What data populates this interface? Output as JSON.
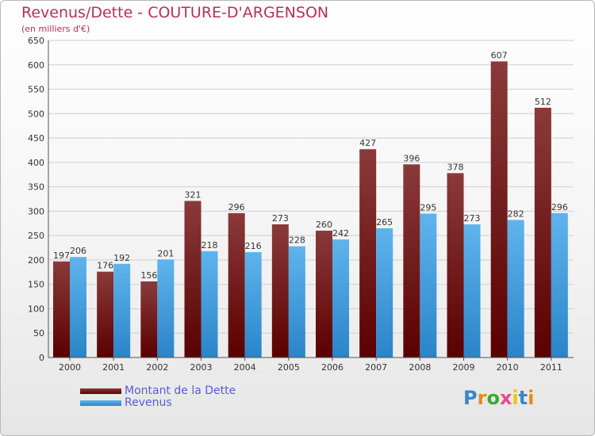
{
  "title": "Revenus/Dette - COUTURE-D'ARGENSON",
  "subtitle": "(en milliers d'€)",
  "logo": {
    "text": "Proxiti",
    "colors": [
      "#3a86c8",
      "#e8891c",
      "#3aa83a",
      "#e84a8a",
      "#f2c21c",
      "#3a86c8",
      "#e8891c"
    ]
  },
  "colors": {
    "title": "#b5305a",
    "legend_text": "#5b5bd6",
    "dette_top": "#8a3a3a",
    "dette_bottom": "#5a0000",
    "revenus_top": "#5fb4ec",
    "revenus_bottom": "#2a84c8",
    "grid": "#cfcfcf"
  },
  "chart_data": {
    "type": "bar",
    "title": "Revenus/Dette - COUTURE-D'ARGENSON",
    "subtitle": "(en milliers d'€)",
    "categories": [
      "2000",
      "2001",
      "2002",
      "2003",
      "2004",
      "2005",
      "2006",
      "2007",
      "2008",
      "2009",
      "2010",
      "2011"
    ],
    "series": [
      {
        "name": "Montant de la Dette",
        "values": [
          197,
          176,
          156,
          321,
          296,
          273,
          260,
          427,
          396,
          378,
          607,
          512
        ]
      },
      {
        "name": "Revenus",
        "values": [
          206,
          192,
          201,
          218,
          216,
          228,
          242,
          265,
          295,
          273,
          282,
          296
        ]
      }
    ],
    "ylim": [
      0,
      650
    ],
    "yticks": [
      0,
      50,
      100,
      150,
      200,
      250,
      300,
      350,
      400,
      450,
      500,
      550,
      600,
      650
    ],
    "grid": true,
    "legend_position": "bottom-left",
    "data_labels": true
  }
}
